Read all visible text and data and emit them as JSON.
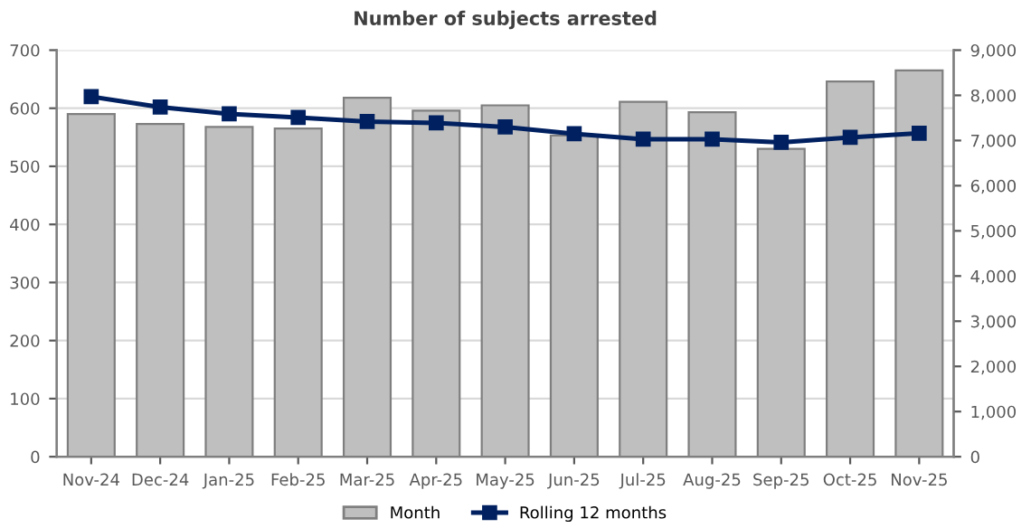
{
  "chart_data": {
    "type": "bar",
    "title": "Number of subjects arrested",
    "categories": [
      "Nov-24",
      "Dec-24",
      "Jan-25",
      "Feb-25",
      "Mar-25",
      "Apr-25",
      "May-25",
      "Jun-25",
      "Jul-25",
      "Aug-25",
      "Sep-25",
      "Oct-25",
      "Nov-25"
    ],
    "series": [
      {
        "name": "Month",
        "color": "#bfbfbf",
        "values": [
          590,
          573,
          568,
          565,
          618,
          596,
          605,
          553,
          611,
          593,
          530,
          646,
          665
        ]
      },
      {
        "name": "Rolling 12 months",
        "type": "line",
        "axis": "y2",
        "color": "#002060",
        "marker": "square",
        "values": [
          7970,
          7740,
          7590,
          7510,
          7420,
          7390,
          7300,
          7150,
          7030,
          7030,
          6960,
          7070,
          7160
        ]
      }
    ],
    "ylim": [
      0,
      700
    ],
    "yticks": [
      0,
      100,
      200,
      300,
      400,
      500,
      600,
      700
    ],
    "y2lim": [
      0,
      9000
    ],
    "y2ticks": [
      {
        "value": 0,
        "label": "0"
      },
      {
        "value": 1000,
        "label": "1,000"
      },
      {
        "value": 2000,
        "label": "2,000"
      },
      {
        "value": 3000,
        "label": "3,000"
      },
      {
        "value": 4000,
        "label": "4,000"
      },
      {
        "value": 5000,
        "label": "5,000"
      },
      {
        "value": 6000,
        "label": "6,000"
      },
      {
        "value": 7000,
        "label": "7,000"
      },
      {
        "value": 8000,
        "label": "8,000"
      },
      {
        "value": 9000,
        "label": "9,000"
      }
    ],
    "grid": "y",
    "legend": "bottom"
  }
}
